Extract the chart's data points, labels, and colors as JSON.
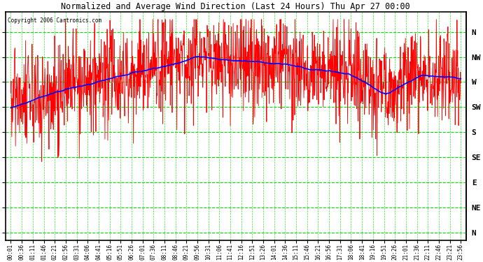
{
  "title": "Normalized and Average Wind Direction (Last 24 Hours) Thu Apr 27 00:00",
  "copyright": "Copyright 2006 Cartronics.com",
  "ytick_labels": [
    "N",
    "NW",
    "W",
    "SW",
    "S",
    "SE",
    "E",
    "NE",
    "N"
  ],
  "ytick_values": [
    8,
    7,
    6,
    5,
    4,
    3,
    2,
    1,
    0
  ],
  "background_color": "#ffffff",
  "plot_bg_color": "#ffffff",
  "grid_color": "#00dd00",
  "red_color": "#ff0000",
  "blue_color": "#0000ff",
  "title_color": "#000000",
  "border_color": "#000000",
  "fig_width": 6.9,
  "fig_height": 3.75,
  "dpi": 100,
  "xtick_labels": [
    "00:01",
    "00:36",
    "01:11",
    "01:46",
    "02:21",
    "02:56",
    "03:31",
    "04:06",
    "04:41",
    "05:16",
    "05:51",
    "06:26",
    "07:01",
    "07:36",
    "08:11",
    "08:46",
    "09:21",
    "09:56",
    "10:31",
    "11:06",
    "11:41",
    "12:16",
    "12:51",
    "13:26",
    "14:01",
    "14:36",
    "15:11",
    "15:46",
    "16:21",
    "16:56",
    "17:31",
    "18:06",
    "18:41",
    "19:16",
    "19:51",
    "20:26",
    "21:01",
    "21:36",
    "22:11",
    "22:46",
    "23:21",
    "23:56"
  ],
  "seed": 42,
  "n_points": 1440
}
